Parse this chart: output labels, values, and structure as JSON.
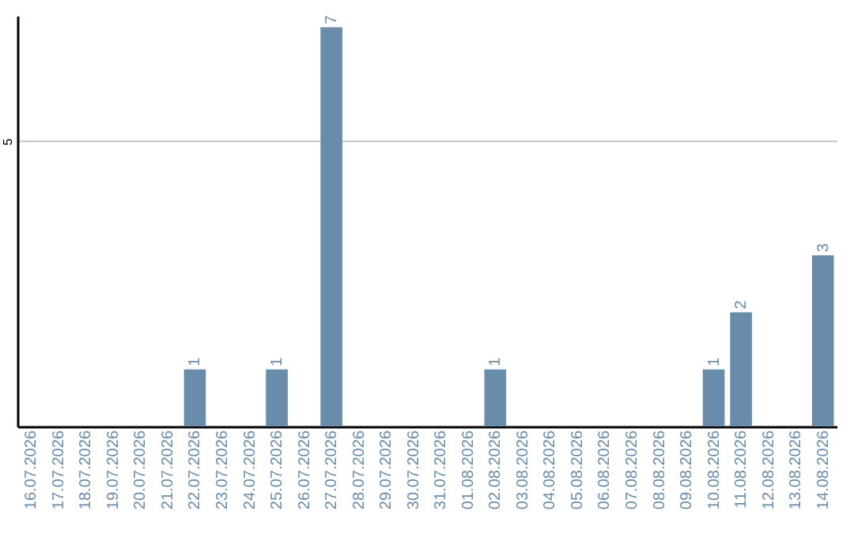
{
  "chart_data": {
    "type": "bar",
    "categories": [
      "16.07.2026",
      "17.07.2026",
      "18.07.2026",
      "19.07.2026",
      "20.07.2026",
      "21.07.2026",
      "22.07.2026",
      "23.07.2026",
      "24.07.2026",
      "25.07.2026",
      "26.07.2026",
      "27.07.2026",
      "28.07.2026",
      "29.07.2026",
      "30.07.2026",
      "31.07.2026",
      "01.08.2026",
      "02.08.2026",
      "03.08.2026",
      "04.08.2026",
      "05.08.2026",
      "06.08.2026",
      "07.08.2026",
      "08.08.2026",
      "09.08.2026",
      "10.08.2026",
      "11.08.2026",
      "12.08.2026",
      "13.08.2026",
      "14.08.2026"
    ],
    "values": [
      0,
      0,
      0,
      0,
      0,
      0,
      1,
      0,
      0,
      1,
      0,
      7,
      0,
      0,
      0,
      0,
      0,
      1,
      0,
      0,
      0,
      0,
      0,
      0,
      0,
      1,
      2,
      0,
      0,
      3
    ],
    "value_labels": [
      null,
      null,
      null,
      null,
      null,
      null,
      "1",
      null,
      null,
      "1",
      null,
      "7",
      null,
      null,
      null,
      null,
      null,
      "1",
      null,
      null,
      null,
      null,
      null,
      null,
      null,
      "1",
      "2",
      null,
      null,
      "3"
    ],
    "color": "#6a8cab",
    "ylim": [
      0,
      7.2
    ],
    "yticks": [
      5
    ],
    "grid": "y"
  }
}
